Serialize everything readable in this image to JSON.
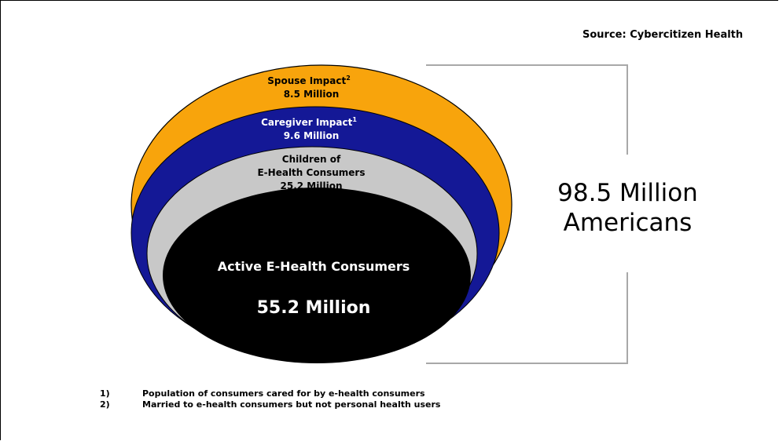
{
  "source": "Source: Cybercitizen Health",
  "colors": {
    "spouse": "#f8a40c",
    "caregiver": "#141896",
    "children": "#c8c8c8",
    "active": "#000000",
    "bracket": "#a8a8a8"
  },
  "layers": [
    {
      "id": "spouse",
      "label": "Spouse Impact",
      "superscript": "2",
      "value": "8.5 Million",
      "millions": 8.5
    },
    {
      "id": "caregiver",
      "label": "Caregiver Impact",
      "superscript": "1",
      "value": "9.6 Million",
      "millions": 9.6
    },
    {
      "id": "children",
      "label_line1": "Children of",
      "label_line2": "E-Health Consumers",
      "value": "25.2 Million",
      "millions": 25.2
    },
    {
      "id": "active",
      "label": "Active E-Health Consumers",
      "value": "55.2 Million",
      "millions": 55.2
    }
  ],
  "total": {
    "line1": "98.5 Million",
    "line2": "Americans"
  },
  "footnotes": [
    {
      "num": "1)",
      "text": "Population of consumers cared for by e-health consumers"
    },
    {
      "num": "2)",
      "text": "Married to e-health consumers but not personal health users"
    }
  ]
}
